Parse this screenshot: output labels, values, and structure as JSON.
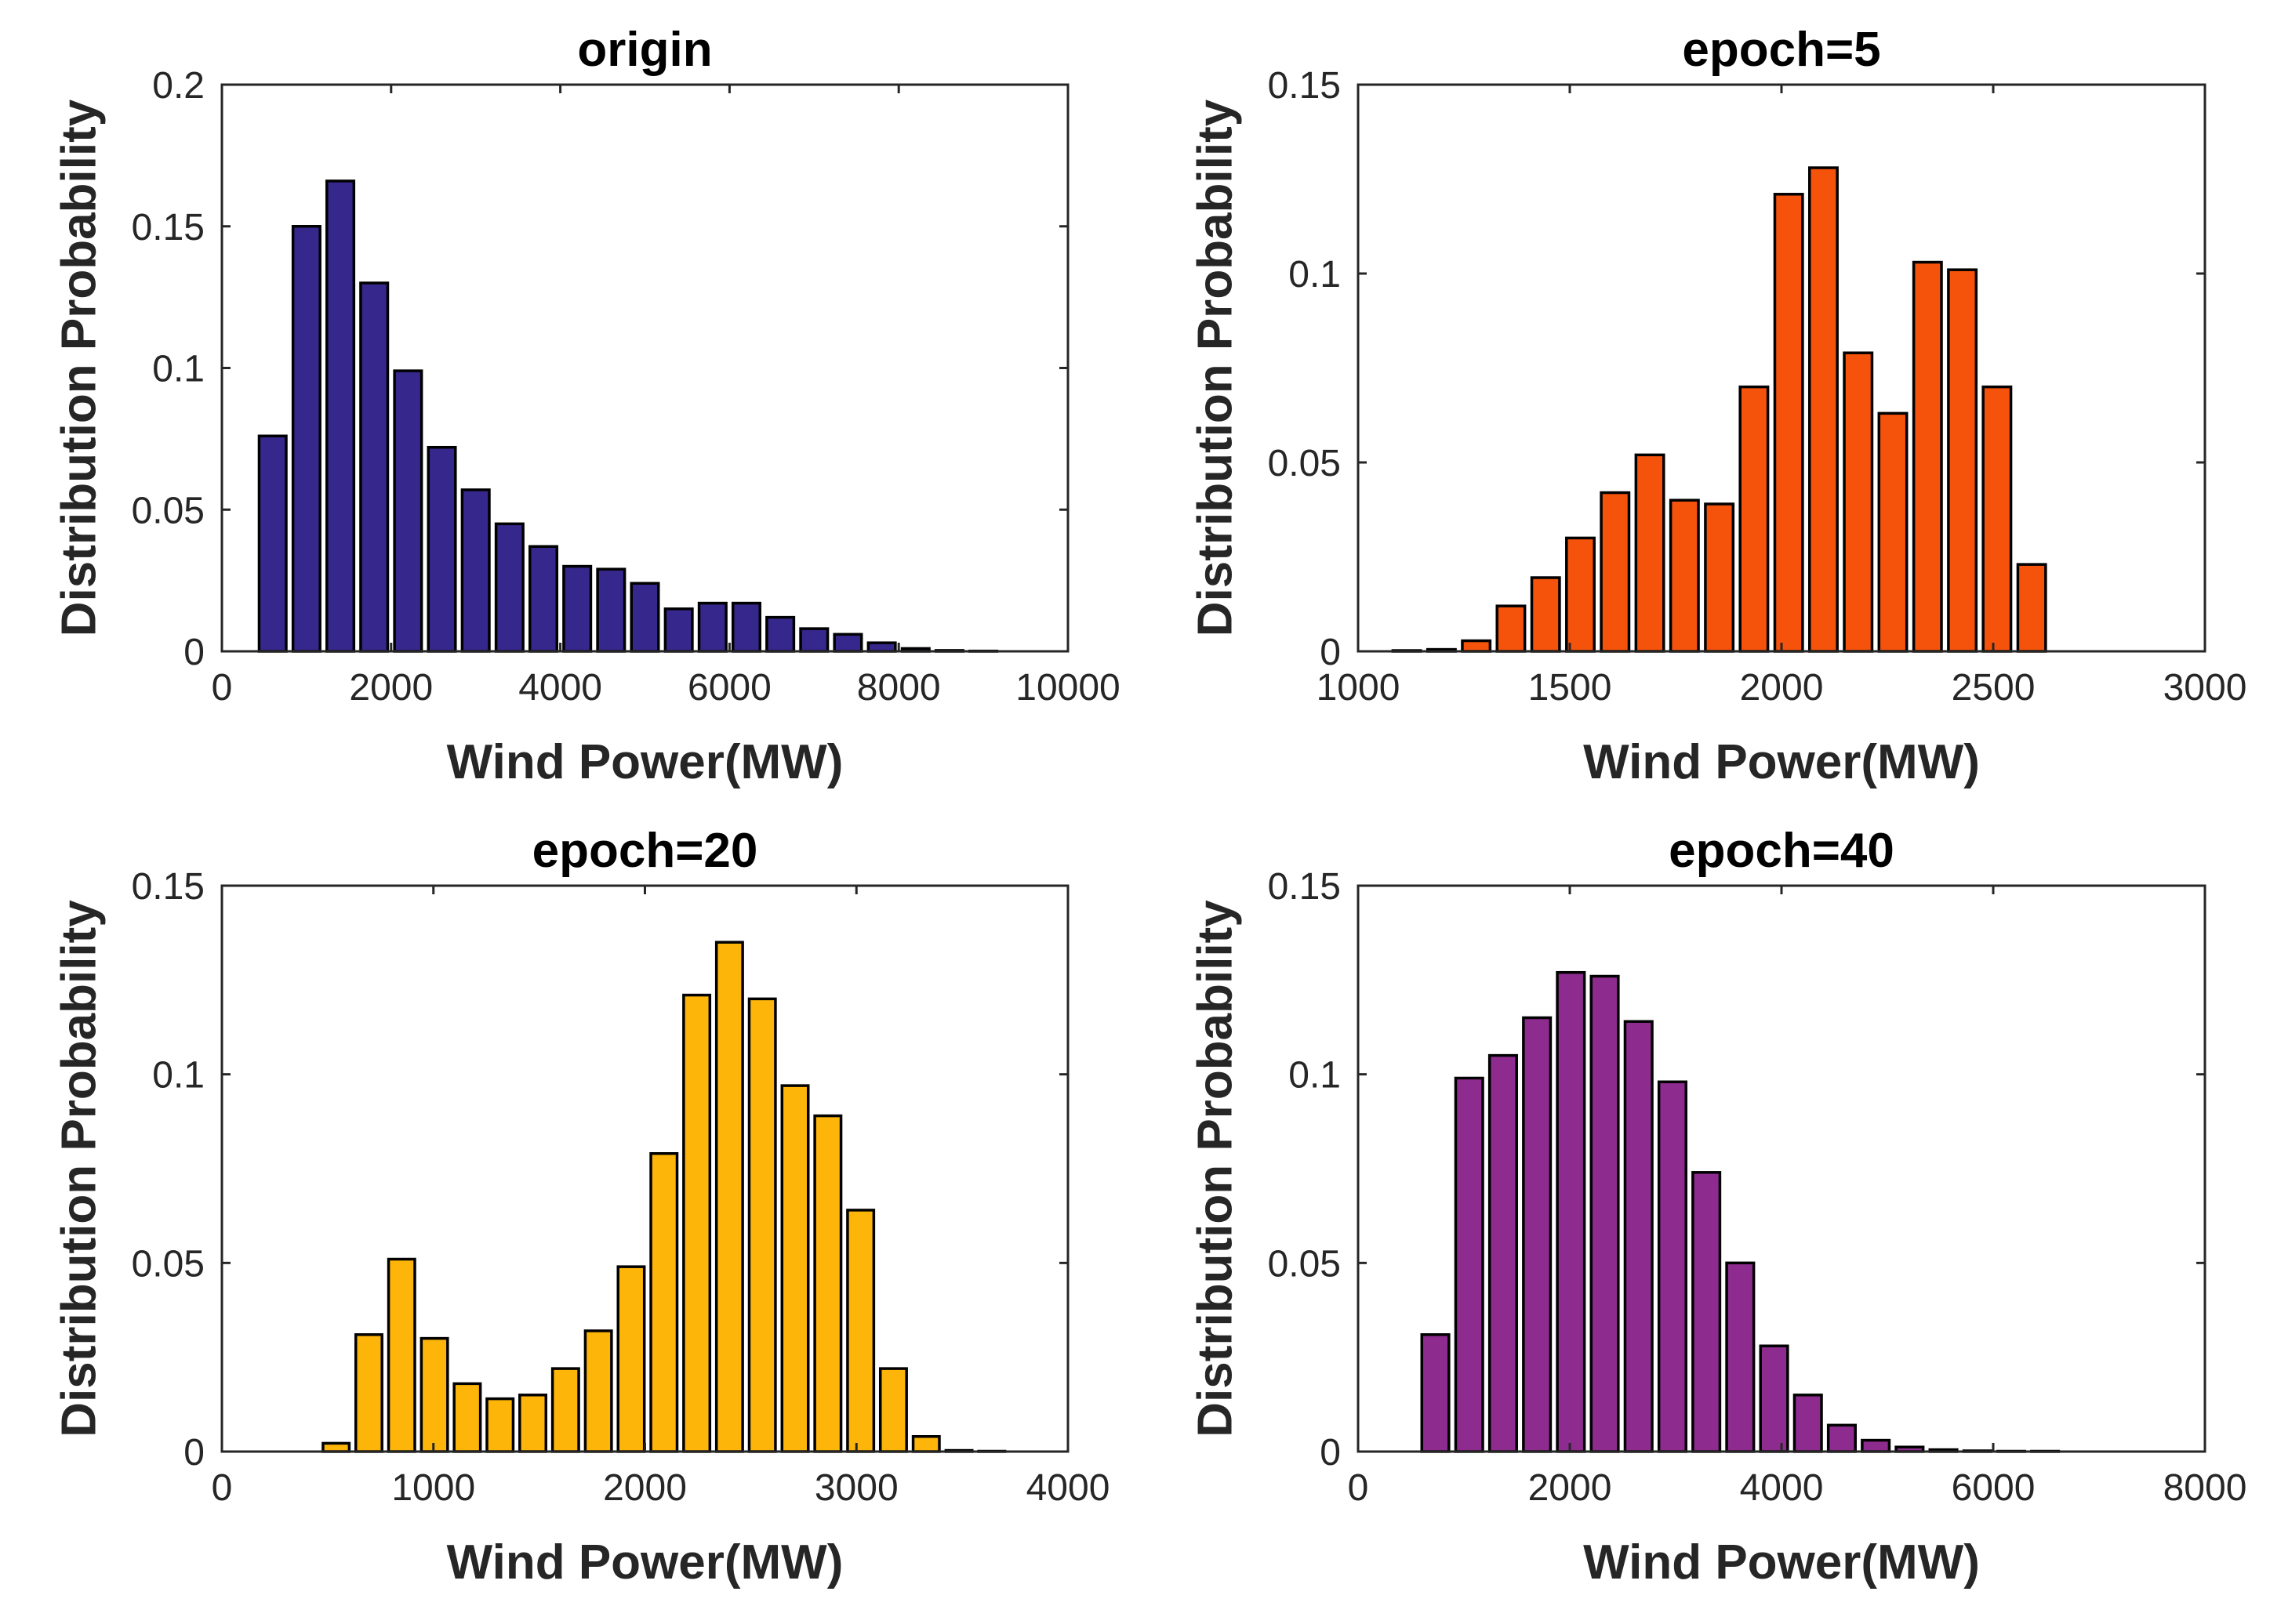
{
  "figure": {
    "panels": [
      {
        "id": "origin",
        "title": "origin",
        "xlabel": "Wind Power(MW)",
        "ylabel": "Distribution Probability",
        "color": "#35278b",
        "xticks": [
          "0",
          "2000",
          "4000",
          "6000",
          "8000",
          "10000"
        ],
        "yticks": [
          "0",
          "0.05",
          "0.1",
          "0.15",
          "0.2"
        ]
      },
      {
        "id": "epoch5",
        "title": "epoch=5",
        "xlabel": "Wind Power(MW)",
        "ylabel": "Distribution Probability",
        "color": "#f5520c",
        "xticks": [
          "1000",
          "1500",
          "2000",
          "2500",
          "3000"
        ],
        "yticks": [
          "0",
          "0.05",
          "0.1",
          "0.15"
        ]
      },
      {
        "id": "epoch20",
        "title": "epoch=20",
        "xlabel": "Wind Power(MW)",
        "ylabel": "Distribution Probability",
        "color": "#fdb50a",
        "xticks": [
          "0",
          "1000",
          "2000",
          "3000",
          "4000"
        ],
        "yticks": [
          "0",
          "0.05",
          "0.1",
          "0.15"
        ]
      },
      {
        "id": "epoch40",
        "title": "epoch=40",
        "xlabel": "Wind Power(MW)",
        "ylabel": "Distribution Probability",
        "color": "#8e2b8f",
        "xticks": [
          "0",
          "2000",
          "4000",
          "6000",
          "8000"
        ],
        "yticks": [
          "0",
          "0.05",
          "0.1",
          "0.15"
        ]
      }
    ]
  },
  "chart_data": [
    {
      "type": "bar",
      "title": "origin",
      "xlabel": "Wind Power(MW)",
      "ylabel": "Distribution Probability",
      "xlim": [
        0,
        10000
      ],
      "ylim": [
        0,
        0.2
      ],
      "xticks": [
        0,
        2000,
        4000,
        6000,
        8000,
        10000
      ],
      "yticks": [
        0,
        0.05,
        0.1,
        0.15,
        0.2
      ],
      "bin_width": 400,
      "x": [
        600,
        1000,
        1400,
        1800,
        2200,
        2600,
        3000,
        3400,
        3800,
        4200,
        4600,
        5000,
        5400,
        5800,
        6200,
        6600,
        7000,
        7400,
        7800,
        8200,
        8600,
        9000
      ],
      "values": [
        0.076,
        0.15,
        0.166,
        0.13,
        0.099,
        0.072,
        0.057,
        0.045,
        0.037,
        0.03,
        0.029,
        0.024,
        0.015,
        0.017,
        0.017,
        0.012,
        0.008,
        0.006,
        0.003,
        0.001,
        0.0003,
        0.0001
      ]
    },
    {
      "type": "bar",
      "title": "epoch=5",
      "xlabel": "Wind Power(MW)",
      "ylabel": "Distribution Probability",
      "xlim": [
        1000,
        3000
      ],
      "ylim": [
        0,
        0.15
      ],
      "xticks": [
        1000,
        1500,
        2000,
        2500,
        3000
      ],
      "yticks": [
        0,
        0.05,
        0.1,
        0.15
      ],
      "bin_width": 82,
      "x": [
        1115,
        1197,
        1279,
        1361,
        1443,
        1525,
        1607,
        1689,
        1771,
        1853,
        1935,
        2017,
        2099,
        2181,
        2263,
        2345,
        2427,
        2509,
        2591,
        2673,
        2755,
        2837
      ],
      "values": [
        0.0002,
        0.0005,
        0.0028,
        0.012,
        0.0195,
        0.03,
        0.042,
        0.052,
        0.04,
        0.039,
        0.07,
        0.121,
        0.128,
        0.079,
        0.063,
        0.103,
        0.101,
        0.07,
        0.023,
        0,
        0,
        0
      ]
    },
    {
      "type": "bar",
      "title": "epoch=20",
      "xlabel": "Wind Power(MW)",
      "ylabel": "Distribution Probability",
      "xlim": [
        0,
        4000
      ],
      "ylim": [
        0,
        0.15
      ],
      "xticks": [
        0,
        1000,
        2000,
        3000,
        4000
      ],
      "yticks": [
        0,
        0.05,
        0.1,
        0.15
      ],
      "bin_width": 155,
      "x": [
        540,
        695,
        850,
        1005,
        1160,
        1315,
        1470,
        1625,
        1780,
        1935,
        2090,
        2245,
        2400,
        2555,
        2710,
        2865,
        3020,
        3175,
        3330,
        3485,
        3640,
        3795
      ],
      "values": [
        0.0022,
        0.031,
        0.051,
        0.03,
        0.018,
        0.014,
        0.015,
        0.022,
        0.032,
        0.049,
        0.079,
        0.121,
        0.135,
        0.12,
        0.097,
        0.089,
        0.064,
        0.022,
        0.004,
        0.0003,
        0.0001,
        0
      ]
    },
    {
      "type": "bar",
      "title": "epoch=40",
      "xlabel": "Wind Power(MW)",
      "ylabel": "Distribution Probability",
      "xlim": [
        0,
        8000
      ],
      "ylim": [
        0,
        0.15
      ],
      "xticks": [
        0,
        2000,
        4000,
        6000,
        8000
      ],
      "yticks": [
        0,
        0.05,
        0.1,
        0.15
      ],
      "bin_width": 320,
      "x": [
        730,
        1050,
        1370,
        1690,
        2010,
        2330,
        2650,
        2970,
        3290,
        3610,
        3930,
        4250,
        4570,
        4890,
        5210,
        5530,
        5850,
        6170,
        6490,
        6810,
        7130,
        7450
      ],
      "values": [
        0.031,
        0.099,
        0.105,
        0.115,
        0.127,
        0.126,
        0.114,
        0.098,
        0.074,
        0.05,
        0.028,
        0.015,
        0.007,
        0.003,
        0.0012,
        0.0005,
        0.0002,
        0.0001,
        0.0001,
        0,
        0,
        0
      ]
    }
  ]
}
